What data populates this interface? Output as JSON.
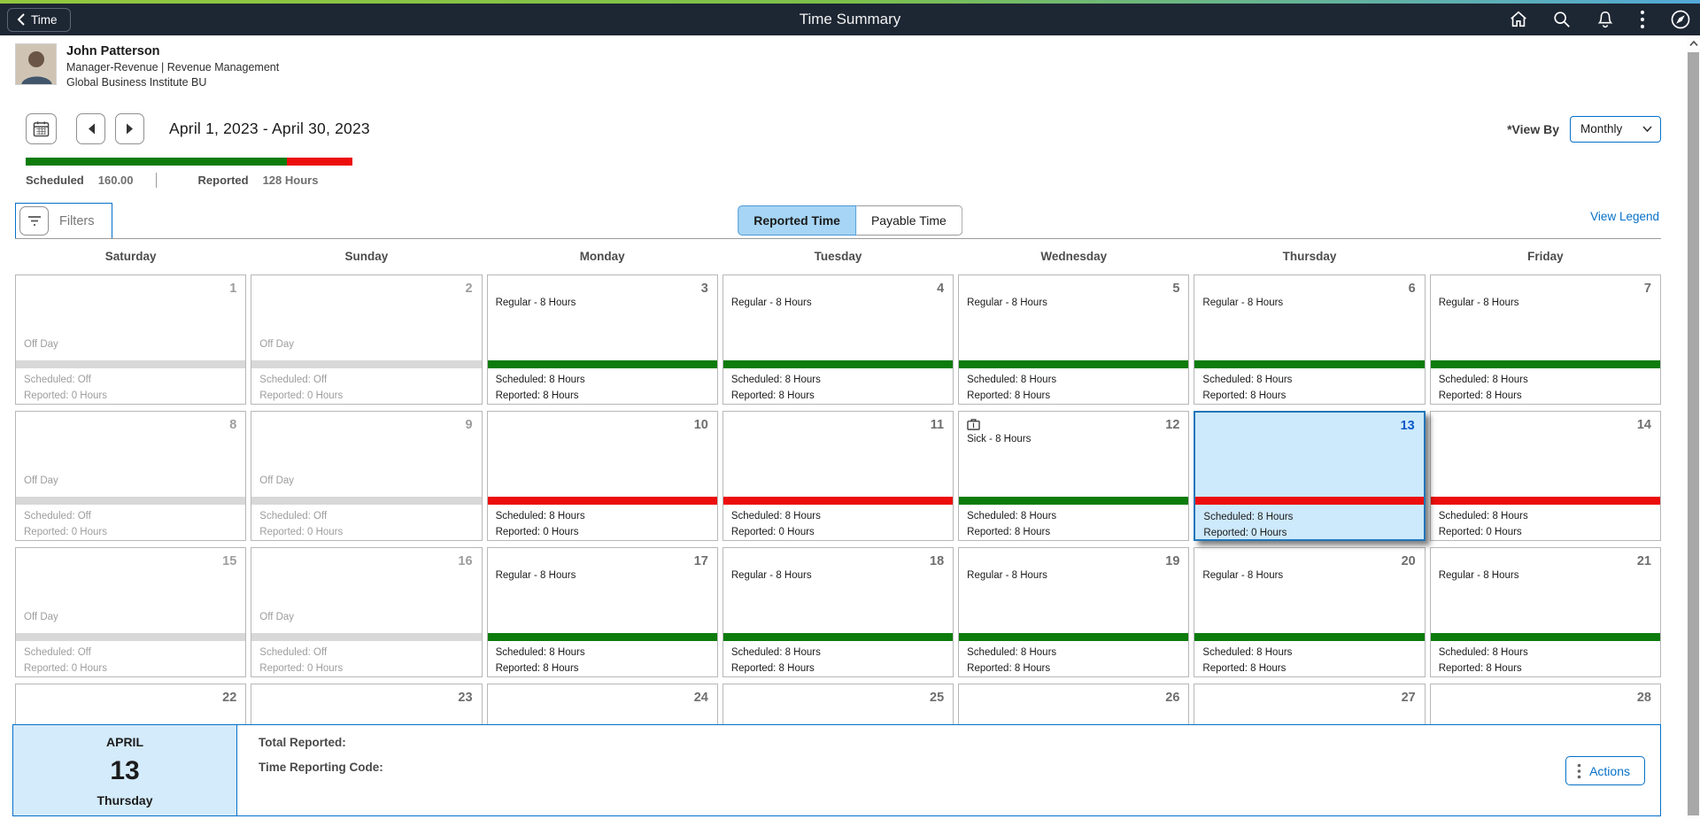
{
  "header": {
    "back_label": "Time",
    "title": "Time Summary",
    "icons": [
      "home",
      "search",
      "notifications",
      "more-actions",
      "navbar-compass"
    ]
  },
  "employee": {
    "name": "John Patterson",
    "job": "Manager-Revenue | Revenue Management",
    "org": "Global Business Institute BU"
  },
  "period": {
    "range": "April 1, 2023 - April 30, 2023",
    "view_by_label": "*View By",
    "view_by_value": "Monthly"
  },
  "summary": {
    "scheduled_label": "Scheduled",
    "scheduled_value": "160.00",
    "reported_label": "Reported",
    "reported_value": "128 Hours",
    "green_percent": 80
  },
  "toolbar": {
    "filters_label": "Filters",
    "tabs": [
      {
        "label": "Reported Time",
        "active": true
      },
      {
        "label": "Payable Time",
        "active": false
      }
    ],
    "legend_label": "View Legend"
  },
  "calendar": {
    "day_headers": [
      "Saturday",
      "Sunday",
      "Monday",
      "Tuesday",
      "Wednesday",
      "Thursday",
      "Friday"
    ],
    "weeks": [
      [
        {
          "num": "1",
          "state": "off",
          "entry": "Off Day",
          "bar": "gray",
          "scheduled": "Scheduled: Off",
          "reported": "Reported: 0 Hours"
        },
        {
          "num": "2",
          "state": "off",
          "entry": "Off Day",
          "bar": "gray",
          "scheduled": "Scheduled: Off",
          "reported": "Reported: 0 Hours"
        },
        {
          "num": "3",
          "state": "work",
          "entry": "Regular - 8 Hours",
          "bar": "green",
          "scheduled": "Scheduled: 8 Hours",
          "reported": "Reported: 8 Hours"
        },
        {
          "num": "4",
          "state": "work",
          "entry": "Regular - 8 Hours",
          "bar": "green",
          "scheduled": "Scheduled: 8 Hours",
          "reported": "Reported: 8 Hours"
        },
        {
          "num": "5",
          "state": "work",
          "entry": "Regular - 8 Hours",
          "bar": "green",
          "scheduled": "Scheduled: 8 Hours",
          "reported": "Reported: 8 Hours"
        },
        {
          "num": "6",
          "state": "work",
          "entry": "Regular - 8 Hours",
          "bar": "green",
          "scheduled": "Scheduled: 8 Hours",
          "reported": "Reported: 8 Hours"
        },
        {
          "num": "7",
          "state": "work",
          "entry": "Regular - 8 Hours",
          "bar": "green",
          "scheduled": "Scheduled: 8 Hours",
          "reported": "Reported: 8 Hours"
        }
      ],
      [
        {
          "num": "8",
          "state": "off",
          "entry": "Off Day",
          "bar": "gray",
          "scheduled": "Scheduled: Off",
          "reported": "Reported: 0 Hours"
        },
        {
          "num": "9",
          "state": "off",
          "entry": "Off Day",
          "bar": "gray",
          "scheduled": "Scheduled: Off",
          "reported": "Reported: 0 Hours"
        },
        {
          "num": "10",
          "state": "work",
          "entry": "",
          "bar": "red",
          "scheduled": "Scheduled: 8 Hours",
          "reported": "Reported: 0 Hours"
        },
        {
          "num": "11",
          "state": "work",
          "entry": "",
          "bar": "red",
          "scheduled": "Scheduled: 8 Hours",
          "reported": "Reported: 0 Hours"
        },
        {
          "num": "12",
          "state": "work",
          "icon": "briefcase",
          "entry": "Sick - 8 Hours",
          "bar": "green",
          "scheduled": "Scheduled: 8 Hours",
          "reported": "Reported: 8 Hours"
        },
        {
          "num": "13",
          "state": "work",
          "selected": true,
          "entry": "",
          "bar": "red",
          "scheduled": "Scheduled: 8 Hours",
          "reported": "Reported: 0 Hours"
        },
        {
          "num": "14",
          "state": "work",
          "entry": "",
          "bar": "red",
          "scheduled": "Scheduled: 8 Hours",
          "reported": "Reported: 0 Hours"
        }
      ],
      [
        {
          "num": "15",
          "state": "off",
          "entry": "Off Day",
          "bar": "gray",
          "scheduled": "Scheduled: Off",
          "reported": "Reported: 0 Hours"
        },
        {
          "num": "16",
          "state": "off",
          "entry": "Off Day",
          "bar": "gray",
          "scheduled": "Scheduled: Off",
          "reported": "Reported: 0 Hours"
        },
        {
          "num": "17",
          "state": "work",
          "entry": "Regular - 8 Hours",
          "bar": "green",
          "scheduled": "Scheduled: 8 Hours",
          "reported": "Reported: 8 Hours"
        },
        {
          "num": "18",
          "state": "work",
          "entry": "Regular - 8 Hours",
          "bar": "green",
          "scheduled": "Scheduled: 8 Hours",
          "reported": "Reported: 8 Hours"
        },
        {
          "num": "19",
          "state": "work",
          "entry": "Regular - 8 Hours",
          "bar": "green",
          "scheduled": "Scheduled: 8 Hours",
          "reported": "Reported: 8 Hours"
        },
        {
          "num": "20",
          "state": "work",
          "entry": "Regular - 8 Hours",
          "bar": "green",
          "scheduled": "Scheduled: 8 Hours",
          "reported": "Reported: 8 Hours"
        },
        {
          "num": "21",
          "state": "work",
          "entry": "Regular - 8 Hours",
          "bar": "green",
          "scheduled": "Scheduled: 8 Hours",
          "reported": "Reported: 8 Hours"
        }
      ],
      [
        {
          "num": "22",
          "state": "partial"
        },
        {
          "num": "23",
          "state": "partial"
        },
        {
          "num": "24",
          "state": "partial"
        },
        {
          "num": "25",
          "state": "partial"
        },
        {
          "num": "26",
          "state": "partial"
        },
        {
          "num": "27",
          "state": "partial"
        },
        {
          "num": "28",
          "state": "partial"
        }
      ]
    ]
  },
  "footer": {
    "month": "APRIL",
    "day": "13",
    "weekday": "Thursday",
    "total_reported_label": "Total Reported:",
    "time_reporting_code_label": "Time Reporting Code:",
    "actions_label": "Actions"
  },
  "colors": {
    "header_bg": "#1d2633",
    "accent_blue": "#0570c7",
    "scheduled_green": "#0d7c0d",
    "missing_red": "#ec0d0d",
    "off_gray": "#d8d8d8",
    "selected_bg": "#cde9fc",
    "active_tab_bg": "#a6d5f5",
    "gradient_left": "#93c83e",
    "gradient_right": "#52a8d8"
  }
}
